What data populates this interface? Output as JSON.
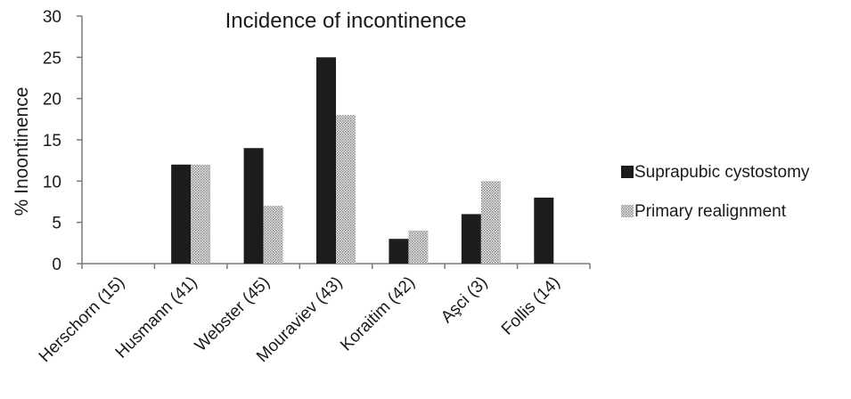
{
  "chart_data": {
    "type": "bar",
    "title": "Incidence of incontinence",
    "xlabel": "",
    "ylabel": "% Inoontinence",
    "ylim": [
      0,
      30
    ],
    "yticks": [
      0,
      5,
      10,
      15,
      20,
      25,
      30
    ],
    "grid": false,
    "legend_position": "right",
    "categories": [
      "Herschorn (15)",
      "Husmann (41)",
      "Webster (45)",
      "Mouraviev (43)",
      "Koraitim (42)",
      "Aşci (3)",
      "Follis (14)"
    ],
    "series": [
      {
        "name": "Suprapubic cystostomy",
        "color": "#1c1c1c",
        "fill": "solid",
        "values": [
          null,
          12,
          14,
          25,
          3,
          6,
          8
        ]
      },
      {
        "name": "Primary realignment",
        "color": "#b0b0b0",
        "fill": "dotted",
        "values": [
          null,
          12,
          7,
          18,
          4,
          10,
          null
        ]
      }
    ]
  }
}
